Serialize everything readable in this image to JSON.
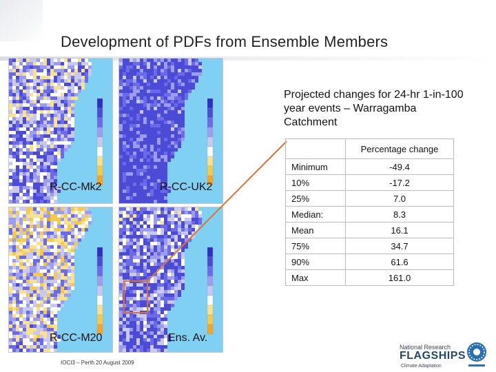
{
  "title": "Development of PDFs from Ensemble Members",
  "maps": [
    {
      "label": "R-CC-Mk2"
    },
    {
      "label": "R-CC-UK2"
    },
    {
      "label": "R-CC-M20"
    },
    {
      "label": "Ens. Av."
    }
  ],
  "description": "Projected changes for 24-hr 1-in-100 year events – Warragamba Catchment",
  "table": {
    "header": "Percentage change",
    "rows": [
      {
        "label": "Minimum",
        "value": "-49.4"
      },
      {
        "label": "10%",
        "value": "-17.2"
      },
      {
        "label": "25%",
        "value": "7.0"
      },
      {
        "label": "Median:",
        "value": "8.3"
      },
      {
        "label": "Mean",
        "value": "16.1"
      },
      {
        "label": "75%",
        "value": "34.7"
      },
      {
        "label": "90%",
        "value": "61.6"
      },
      {
        "label": "Max",
        "value": "161.0"
      }
    ]
  },
  "footer": "IOCI3 – Perth 20 August 2009",
  "logo": {
    "line1": "National Research",
    "line2": "FLAGSHIPS",
    "line3": "Climate Adaptation"
  },
  "colors": {
    "ocean": "#7fd0f2",
    "callout": "#e07030"
  }
}
